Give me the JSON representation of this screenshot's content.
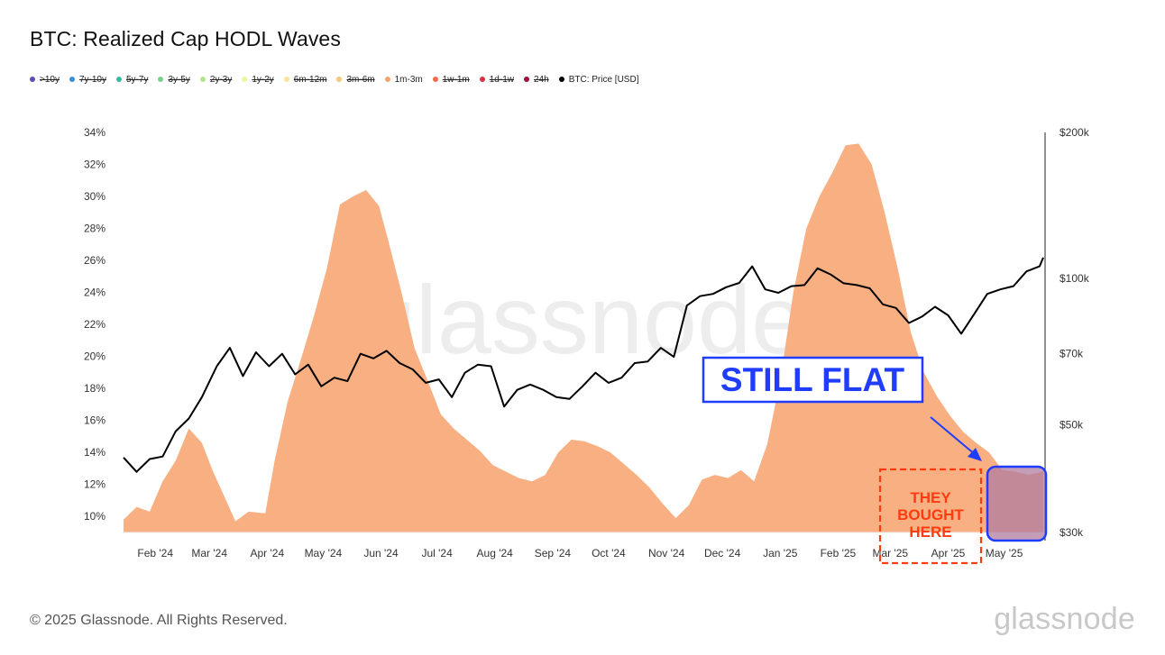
{
  "title": "BTC: Realized Cap HODL Waves",
  "legend": [
    {
      "label": ">10y",
      "color": "#5b4fb6",
      "active": false
    },
    {
      "label": "7y-10y",
      "color": "#3f8fcf",
      "active": false
    },
    {
      "label": "5y-7y",
      "color": "#39b8a5",
      "active": false
    },
    {
      "label": "3y-5y",
      "color": "#7ccf92",
      "active": false
    },
    {
      "label": "2y-3y",
      "color": "#b7e28f",
      "active": false
    },
    {
      "label": "1y-2y",
      "color": "#f1f2a0",
      "active": false
    },
    {
      "label": "6m-12m",
      "color": "#fbe49a",
      "active": false
    },
    {
      "label": "3m-6m",
      "color": "#f7c77e",
      "active": false
    },
    {
      "label": "1m-3m",
      "color": "#f8a26c",
      "active": true
    },
    {
      "label": "1w-1m",
      "color": "#f46a4b",
      "active": false
    },
    {
      "label": "1d-1w",
      "color": "#d8333f",
      "active": false
    },
    {
      "label": "24h",
      "color": "#9c0f3e",
      "active": false
    },
    {
      "label": "BTC: Price [USD]",
      "color": "#000000",
      "active": true
    }
  ],
  "footer": {
    "copyright": "© 2025 Glassnode. All Rights Reserved.",
    "brand": "glassnode"
  },
  "watermark": "glassnode",
  "annotations": {
    "still_flat": "STILL FLAT",
    "they_bought_here": [
      "THEY",
      "BOUGHT",
      "HERE"
    ],
    "flat_color": "#1f3cff",
    "bought_color": "#ff3b0f",
    "highlight_fill": "#b07ca0"
  },
  "chart_data": {
    "type": "area",
    "x_ticks": [
      "Feb '24",
      "Mar '24",
      "Apr '24",
      "May '24",
      "Jun '24",
      "Jul '24",
      "Aug '24",
      "Sep '24",
      "Oct '24",
      "Nov '24",
      "Dec '24",
      "Jan '25",
      "Feb '25",
      "Mar '25",
      "Apr '25",
      "May '25"
    ],
    "y_left": {
      "ticks": [
        "10%",
        "12%",
        "14%",
        "16%",
        "18%",
        "20%",
        "22%",
        "24%",
        "26%",
        "28%",
        "30%",
        "32%",
        "34%"
      ],
      "range": [
        9,
        34
      ]
    },
    "y_right": {
      "ticks": [
        "$30k",
        "$50k",
        "$70k",
        "$100k",
        "$200k"
      ],
      "scale": "log",
      "range": [
        30000,
        200000
      ]
    },
    "grid": false,
    "legend_position": "top-left",
    "x_range": [
      "2024-01-15",
      "2025-05-22"
    ],
    "series": [
      {
        "name": "1m-3m",
        "axis": "left",
        "color": "#f8b083",
        "points": [
          [
            "2024-01-15",
            9.8
          ],
          [
            "2024-01-22",
            10.6
          ],
          [
            "2024-01-29",
            10.3
          ],
          [
            "2024-02-05",
            12.2
          ],
          [
            "2024-02-12",
            13.5
          ],
          [
            "2024-02-19",
            15.5
          ],
          [
            "2024-02-26",
            14.6
          ],
          [
            "2024-03-03",
            12.8
          ],
          [
            "2024-03-10",
            11.0
          ],
          [
            "2024-03-15",
            9.7
          ],
          [
            "2024-03-22",
            10.3
          ],
          [
            "2024-03-31",
            10.2
          ],
          [
            "2024-04-05",
            13.5
          ],
          [
            "2024-04-12",
            17.2
          ],
          [
            "2024-04-19",
            19.8
          ],
          [
            "2024-04-26",
            22.5
          ],
          [
            "2024-05-03",
            25.5
          ],
          [
            "2024-05-10",
            29.5
          ],
          [
            "2024-05-17",
            30.0
          ],
          [
            "2024-05-24",
            30.4
          ],
          [
            "2024-05-31",
            29.4
          ],
          [
            "2024-06-05",
            27.2
          ],
          [
            "2024-06-12",
            24.0
          ],
          [
            "2024-06-19",
            20.5
          ],
          [
            "2024-06-26",
            18.5
          ],
          [
            "2024-07-03",
            16.4
          ],
          [
            "2024-07-10",
            15.5
          ],
          [
            "2024-07-17",
            14.8
          ],
          [
            "2024-07-24",
            14.1
          ],
          [
            "2024-07-31",
            13.2
          ],
          [
            "2024-08-07",
            12.8
          ],
          [
            "2024-08-14",
            12.4
          ],
          [
            "2024-08-21",
            12.2
          ],
          [
            "2024-08-28",
            12.6
          ],
          [
            "2024-09-04",
            14.0
          ],
          [
            "2024-09-11",
            14.8
          ],
          [
            "2024-09-18",
            14.7
          ],
          [
            "2024-09-25",
            14.4
          ],
          [
            "2024-10-02",
            14.0
          ],
          [
            "2024-10-09",
            13.3
          ],
          [
            "2024-10-16",
            12.6
          ],
          [
            "2024-10-23",
            11.8
          ],
          [
            "2024-10-30",
            10.8
          ],
          [
            "2024-11-06",
            9.9
          ],
          [
            "2024-11-13",
            10.7
          ],
          [
            "2024-11-20",
            12.3
          ],
          [
            "2024-11-27",
            12.6
          ],
          [
            "2024-12-04",
            12.4
          ],
          [
            "2024-12-11",
            12.9
          ],
          [
            "2024-12-18",
            12.2
          ],
          [
            "2024-12-25",
            14.5
          ],
          [
            "2025-01-01",
            18.5
          ],
          [
            "2025-01-08",
            24.0
          ],
          [
            "2025-01-15",
            28.0
          ],
          [
            "2025-01-22",
            30.0
          ],
          [
            "2025-01-29",
            31.5
          ],
          [
            "2025-02-05",
            33.2
          ],
          [
            "2025-02-12",
            33.3
          ],
          [
            "2025-02-19",
            32.0
          ],
          [
            "2025-02-26",
            29.0
          ],
          [
            "2025-03-05",
            25.5
          ],
          [
            "2025-03-12",
            21.5
          ],
          [
            "2025-03-19",
            19.0
          ],
          [
            "2025-03-26",
            17.5
          ],
          [
            "2025-04-02",
            16.3
          ],
          [
            "2025-04-09",
            15.3
          ],
          [
            "2025-04-16",
            14.6
          ],
          [
            "2025-04-23",
            14.0
          ],
          [
            "2025-04-30",
            12.9
          ],
          [
            "2025-05-07",
            12.8
          ],
          [
            "2025-05-14",
            12.6
          ],
          [
            "2025-05-22",
            12.8
          ]
        ]
      },
      {
        "name": "BTC: Price [USD]",
        "axis": "right",
        "color": "#000000",
        "points": [
          [
            "2024-01-15",
            42800
          ],
          [
            "2024-01-22",
            40000
          ],
          [
            "2024-01-29",
            42500
          ],
          [
            "2024-02-05",
            43000
          ],
          [
            "2024-02-12",
            48500
          ],
          [
            "2024-02-19",
            51500
          ],
          [
            "2024-02-26",
            57000
          ],
          [
            "2024-03-05",
            66000
          ],
          [
            "2024-03-12",
            72000
          ],
          [
            "2024-03-19",
            63000
          ],
          [
            "2024-03-26",
            70500
          ],
          [
            "2024-04-02",
            66000
          ],
          [
            "2024-04-09",
            70000
          ],
          [
            "2024-04-16",
            63500
          ],
          [
            "2024-04-23",
            66500
          ],
          [
            "2024-04-30",
            60000
          ],
          [
            "2024-05-07",
            62500
          ],
          [
            "2024-05-14",
            61500
          ],
          [
            "2024-05-21",
            70000
          ],
          [
            "2024-05-28",
            68500
          ],
          [
            "2024-06-04",
            71000
          ],
          [
            "2024-06-11",
            67000
          ],
          [
            "2024-06-18",
            65000
          ],
          [
            "2024-06-25",
            61000
          ],
          [
            "2024-07-02",
            62000
          ],
          [
            "2024-07-09",
            57000
          ],
          [
            "2024-07-16",
            64000
          ],
          [
            "2024-07-23",
            66500
          ],
          [
            "2024-07-30",
            66000
          ],
          [
            "2024-08-06",
            54500
          ],
          [
            "2024-08-13",
            59000
          ],
          [
            "2024-08-20",
            60500
          ],
          [
            "2024-08-27",
            59000
          ],
          [
            "2024-09-03",
            57000
          ],
          [
            "2024-09-10",
            56500
          ],
          [
            "2024-09-17",
            60000
          ],
          [
            "2024-09-24",
            64000
          ],
          [
            "2024-10-01",
            61000
          ],
          [
            "2024-10-08",
            62500
          ],
          [
            "2024-10-15",
            67000
          ],
          [
            "2024-10-22",
            67500
          ],
          [
            "2024-10-29",
            72000
          ],
          [
            "2024-11-05",
            69000
          ],
          [
            "2024-11-12",
            88000
          ],
          [
            "2024-11-19",
            92000
          ],
          [
            "2024-11-26",
            93000
          ],
          [
            "2024-12-03",
            96000
          ],
          [
            "2024-12-10",
            98000
          ],
          [
            "2024-12-17",
            106000
          ],
          [
            "2024-12-24",
            95000
          ],
          [
            "2024-12-31",
            93500
          ],
          [
            "2025-01-07",
            96500
          ],
          [
            "2025-01-14",
            97000
          ],
          [
            "2025-01-21",
            105000
          ],
          [
            "2025-01-28",
            102000
          ],
          [
            "2025-02-04",
            97800
          ],
          [
            "2025-02-11",
            97000
          ],
          [
            "2025-02-18",
            95500
          ],
          [
            "2025-02-25",
            88500
          ],
          [
            "2025-03-04",
            87000
          ],
          [
            "2025-03-11",
            81000
          ],
          [
            "2025-03-18",
            83500
          ],
          [
            "2025-03-25",
            87500
          ],
          [
            "2025-04-01",
            84000
          ],
          [
            "2025-04-08",
            77000
          ],
          [
            "2025-04-15",
            84500
          ],
          [
            "2025-04-22",
            93000
          ],
          [
            "2025-04-29",
            95000
          ],
          [
            "2025-05-06",
            96500
          ],
          [
            "2025-05-13",
            103500
          ],
          [
            "2025-05-20",
            106000
          ],
          [
            "2025-05-22",
            110500
          ]
        ]
      }
    ]
  }
}
